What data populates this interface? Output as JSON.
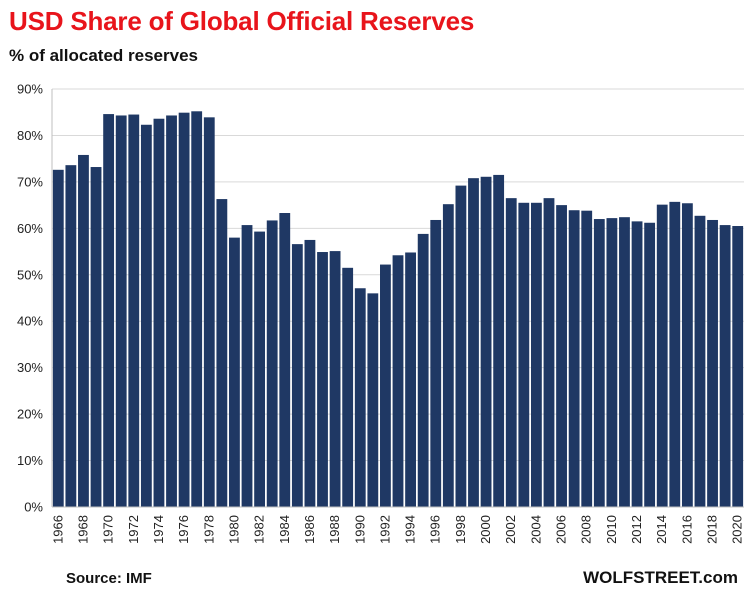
{
  "header": {
    "title": "USD Share of Global Official Reserves",
    "subtitle": "% of allocated reserves"
  },
  "footer": {
    "source": "Source: IMF",
    "brand": "WOLFSTREET.com"
  },
  "colors": {
    "bar": "#1f3864",
    "title": "#e8141b",
    "grid": "#d9d9d9"
  },
  "chart_data": {
    "type": "bar",
    "title": "USD Share of Global Official Reserves",
    "subtitle": "% of allocated reserves",
    "xlabel": "",
    "ylabel": "",
    "ylim": [
      0,
      90
    ],
    "yticks": [
      0,
      10,
      20,
      30,
      40,
      50,
      60,
      70,
      80,
      90
    ],
    "ytick_labels": [
      "0%",
      "10%",
      "20%",
      "30%",
      "40%",
      "50%",
      "60%",
      "70%",
      "80%",
      "90%"
    ],
    "grid": true,
    "legend": "none",
    "categories": [
      1966,
      1967,
      1968,
      1969,
      1970,
      1971,
      1972,
      1973,
      1974,
      1975,
      1976,
      1977,
      1978,
      1979,
      1980,
      1981,
      1982,
      1983,
      1984,
      1985,
      1986,
      1987,
      1988,
      1989,
      1990,
      1991,
      1992,
      1993,
      1994,
      1995,
      1996,
      1997,
      1998,
      1999,
      2000,
      2001,
      2002,
      2003,
      2004,
      2005,
      2006,
      2007,
      2008,
      2009,
      2010,
      2011,
      2012,
      2013,
      2014,
      2015,
      2016,
      2017,
      2018,
      2019,
      2020
    ],
    "xtick_labels": [
      "1966",
      "1968",
      "1970",
      "1972",
      "1974",
      "1976",
      "1978",
      "1980",
      "1982",
      "1984",
      "1986",
      "1988",
      "1990",
      "1992",
      "1994",
      "1996",
      "1998",
      "2000",
      "2002",
      "2004",
      "2006",
      "2008",
      "2010",
      "2012",
      "2014",
      "2016",
      "2018",
      "2020"
    ],
    "values": [
      72.6,
      73.6,
      75.8,
      73.2,
      84.6,
      84.3,
      84.5,
      82.3,
      83.6,
      84.3,
      84.9,
      85.2,
      83.9,
      66.3,
      58.0,
      60.7,
      59.3,
      61.7,
      63.3,
      56.6,
      57.5,
      54.9,
      55.1,
      51.5,
      47.1,
      46.0,
      52.2,
      54.2,
      54.8,
      58.8,
      61.8,
      65.2,
      69.2,
      70.8,
      71.1,
      71.5,
      66.5,
      65.5,
      65.5,
      66.5,
      65.0,
      63.9,
      63.8,
      62.0,
      62.2,
      62.4,
      61.5,
      61.2,
      65.1,
      65.7,
      65.4,
      62.7,
      61.8,
      60.7,
      60.5
    ]
  }
}
